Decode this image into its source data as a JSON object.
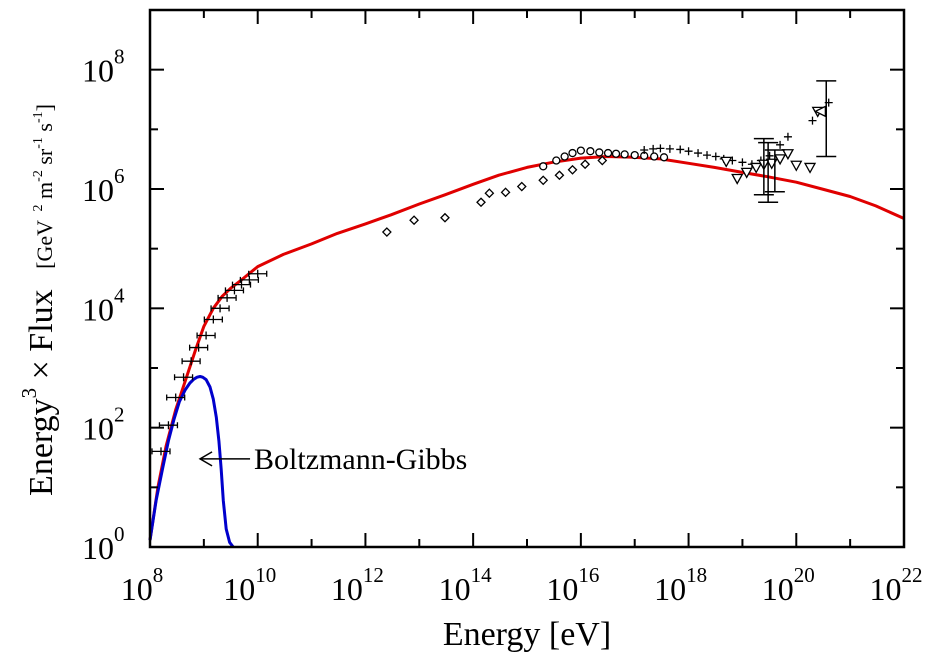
{
  "chart_data": {
    "type": "scatter",
    "xlabel": "Energy  [eV]",
    "ylabel_parts": {
      "base": "Energy",
      "exp": "3",
      "rest": " × Flux",
      "units": "[GeV",
      "units_tail": [
        {
          "t": "2",
          "sup": true
        },
        {
          "t": " m",
          "sup": false
        },
        {
          "t": "-2",
          "sup": true
        },
        {
          "t": " sr",
          "sup": false
        },
        {
          "t": "-1",
          "sup": true
        },
        {
          "t": " s",
          "sup": false
        },
        {
          "t": "-1",
          "sup": true
        },
        {
          "t": "]",
          "sup": false
        }
      ]
    },
    "x_scale": "log",
    "y_scale": "log",
    "xlim": [
      100000000.0,
      1e+22
    ],
    "ylim": [
      1,
      1000000000.0
    ],
    "x_ticks": [
      {
        "value": 100000000.0,
        "base": "10",
        "exp": "8"
      },
      {
        "value": 10000000000.0,
        "base": "10",
        "exp": "10"
      },
      {
        "value": 1000000000000.0,
        "base": "10",
        "exp": "12"
      },
      {
        "value": 100000000000000.0,
        "base": "10",
        "exp": "14"
      },
      {
        "value": 1e+16,
        "base": "10",
        "exp": "16"
      },
      {
        "value": 1e+18,
        "base": "10",
        "exp": "18"
      },
      {
        "value": 1e+20,
        "base": "10",
        "exp": "20"
      },
      {
        "value": 1e+22,
        "base": "10",
        "exp": "22"
      }
    ],
    "y_ticks": [
      {
        "value": 1,
        "base": "10",
        "exp": "0"
      },
      {
        "value": 100,
        "base": "10",
        "exp": "2"
      },
      {
        "value": 10000,
        "base": "10",
        "exp": "4"
      },
      {
        "value": 1000000,
        "base": "10",
        "exp": "6"
      },
      {
        "value": 100000000,
        "base": "10",
        "exp": "8"
      }
    ],
    "grid": false,
    "annotations": [
      {
        "text": "Boltzmann-Gibbs",
        "arrow_to": [
          850000000.0,
          30
        ]
      }
    ],
    "series": [
      {
        "style": "red-line",
        "color": "#e00000",
        "x": [
          100000000.0,
          140000000.0,
          200000000.0,
          300000000.0,
          450000000.0,
          700000000.0,
          1000000000.0,
          1500000000.0,
          2200000000.0,
          3200000000.0,
          5000000000.0,
          10000000000.0,
          30000000000.0,
          100000000000.0,
          300000000000.0,
          1000000000000.0,
          3000000000000.0,
          10000000000000.0,
          30000000000000.0,
          100000000000000.0,
          300000000000000.0,
          1000000000000000.0,
          3000000000000000.0,
          1e+16,
          3e+16,
          1e+17,
          3e+17,
          1e+18,
          3e+18,
          1e+19,
          3e+19,
          1e+20,
          3e+20,
          1e+21,
          3e+21,
          1e+22
        ],
        "y": [
          1.3,
          10,
          50,
          200,
          600,
          2000,
          5000,
          10000,
          16000,
          22000,
          30000,
          50000,
          80000,
          120000,
          180000,
          260000,
          370000,
          560000,
          800000,
          1200000,
          1700000,
          2300000,
          2800000,
          3300000,
          3500000,
          3400000,
          3200000,
          2700000,
          2300000,
          1900000,
          1600000,
          1300000,
          1000000,
          750000,
          520000,
          320000
        ]
      },
      {
        "style": "blue-line",
        "color": "#0000cc",
        "x": [
          100000000.0,
          130000000.0,
          170000000.0,
          220000000.0,
          280000000.0,
          350000000.0,
          450000000.0,
          550000000.0,
          650000000.0,
          750000000.0,
          850000000.0,
          950000000.0,
          1100000000.0,
          1300000000.0,
          1500000000.0,
          1700000000.0,
          1900000000.0,
          2100000000.0,
          2300000000.0,
          2600000000.0,
          3000000000.0,
          3500000000.0
        ],
        "y": [
          1.3,
          6,
          20,
          60,
          140,
          270,
          430,
          560,
          650,
          700,
          720,
          700,
          640,
          480,
          300,
          150,
          60,
          20,
          6,
          2,
          1.2,
          1
        ]
      },
      {
        "style": "hbar-plus",
        "x": [
          160000000.0,
          220000000.0,
          300000000.0,
          420000000.0,
          580000000.0,
          800000000.0,
          1100000000.0,
          1500000000.0,
          2000000000.0,
          2700000000.0,
          3700000000.0,
          5000000000.0,
          7000000000.0,
          10000000000.0
        ],
        "y": [
          40,
          110,
          320,
          700,
          1300,
          2200,
          3500,
          6500,
          10000,
          15000,
          20000,
          25000,
          30000,
          38000
        ]
      },
      {
        "style": "diamond",
        "x": [
          2500000000000.0,
          8000000000000.0,
          30000000000000.0,
          140000000000000.0,
          200000000000000.0,
          400000000000000.0,
          800000000000000.0,
          2000000000000000.0,
          4000000000000000.0,
          7000000000000000.0,
          1.2e+16,
          2.5e+16
        ],
        "y": [
          190000,
          300000,
          330000,
          600000,
          850000,
          880000,
          1100000,
          1400000,
          1700000,
          2100000,
          2600000,
          3000000
        ]
      },
      {
        "style": "circle",
        "x": [
          2000000000000000.0,
          3500000000000000.0,
          5000000000000000.0,
          7000000000000000.0,
          1e+16,
          1.5e+16,
          2.2e+16,
          3.2e+16,
          4.5e+16,
          6.5e+16,
          1e+17,
          1.5e+17,
          2.3e+17,
          3.5e+17
        ],
        "y": [
          2400000,
          3000000,
          3500000,
          4000000,
          4400000,
          4300000,
          4100000,
          4000000,
          3900000,
          3800000,
          3700000,
          3600000,
          3500000,
          3400000
        ]
      },
      {
        "style": "plus",
        "x": [
          1.5e+17,
          2.2e+17,
          3e+17,
          4.5e+17,
          7e+17,
          1e+18,
          1.5e+18,
          2.2e+18,
          3.2e+18,
          4.5e+18,
          6.5e+18,
          1e+19,
          1.5e+19,
          2.2e+19,
          3.2e+19,
          5e+19,
          7e+19,
          2e+20,
          4e+20
        ],
        "y": [
          4500000,
          4700000,
          4800000,
          4700000,
          4600000,
          4300000,
          4000000,
          3700000,
          3500000,
          3200000,
          3000000,
          2800000,
          2600000,
          3000000,
          3600000,
          5500000,
          7500000,
          14000000,
          28000000
        ]
      },
      {
        "style": "tri-down",
        "x": [
          5e+18,
          8e+18,
          1.2e+19,
          1.8e+19,
          2.5e+19,
          3.5e+19,
          5e+19,
          7e+19,
          1e+20,
          1.8e+20,
          2.5e+20
        ],
        "y": [
          2900000,
          1500000,
          1900000,
          2300000,
          2600000,
          2700000,
          3200000,
          3900000,
          2500000,
          2300000,
          20000000
        ]
      },
      {
        "style": "tri-left",
        "x": [
          2.8e+20
        ],
        "y": [
          20000000
        ]
      },
      {
        "style": "errorbar",
        "x": [
          2.5e+19,
          3e+19,
          4e+19,
          3.6e+20
        ],
        "y": [
          1900000,
          1300000,
          1500000,
          18000000
        ],
        "ylow": [
          800000,
          600000,
          900000,
          3500000
        ],
        "yhigh": [
          7000000,
          6000000,
          4500000,
          65000000
        ]
      }
    ]
  }
}
